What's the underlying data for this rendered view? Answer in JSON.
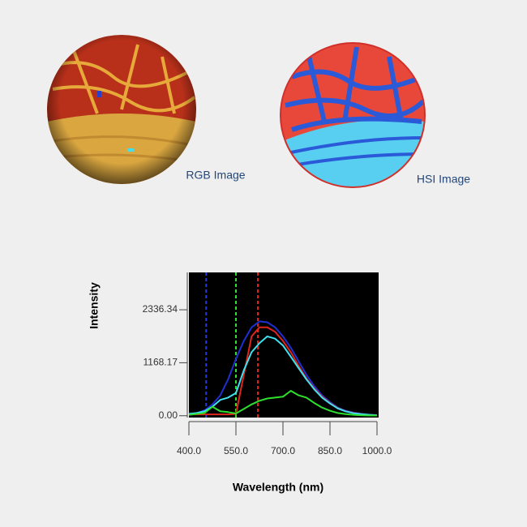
{
  "images": [
    {
      "label": "RGB Image"
    },
    {
      "label": "HSI Image"
    }
  ],
  "chart_data": {
    "type": "line",
    "y_label": "Intensity",
    "x_label": "Wavelength (nm)",
    "x": [
      400,
      425,
      450,
      475,
      500,
      525,
      550,
      575,
      600,
      625,
      650,
      675,
      700,
      725,
      750,
      775,
      800,
      825,
      850,
      875,
      900,
      925,
      950,
      975,
      1000
    ],
    "series": [
      {
        "color": "#1f2fd0",
        "values": [
          40,
          60,
          120,
          250,
          450,
          800,
          1250,
          1650,
          1950,
          2080,
          2060,
          1950,
          1750,
          1500,
          1200,
          900,
          650,
          450,
          300,
          180,
          110,
          70,
          40,
          25,
          15
        ]
      },
      {
        "color": "#e0261c",
        "values": [
          30,
          30,
          30,
          30,
          30,
          30,
          40,
          900,
          1750,
          1950,
          1950,
          1850,
          1650,
          1400,
          1100,
          820,
          600,
          420,
          280,
          170,
          100,
          60,
          35,
          20,
          12
        ]
      },
      {
        "color": "#3fe0f0",
        "values": [
          40,
          60,
          100,
          200,
          350,
          400,
          500,
          1000,
          1400,
          1600,
          1750,
          1700,
          1550,
          1300,
          1050,
          800,
          580,
          400,
          270,
          160,
          95,
          55,
          35,
          20,
          10
        ]
      },
      {
        "color": "#2ee02e",
        "values": [
          20,
          40,
          60,
          200,
          100,
          80,
          50,
          150,
          250,
          330,
          380,
          400,
          420,
          550,
          450,
          400,
          280,
          180,
          110,
          60,
          35,
          20,
          10,
          5,
          5
        ]
      }
    ],
    "markers": [
      {
        "value": 455,
        "color": "#2a3ad8"
      },
      {
        "value": 550,
        "color": "#2ee02e"
      },
      {
        "value": 620,
        "color": "#e0261c"
      }
    ],
    "xlim": [
      400,
      1000
    ],
    "ylim": [
      -40,
      3160
    ],
    "xticks": [
      {
        "value": 400,
        "label": "400.0"
      },
      {
        "value": 550,
        "label": "550.0"
      },
      {
        "value": 700,
        "label": "700.0"
      },
      {
        "value": 850,
        "label": "850.0"
      },
      {
        "value": 1000,
        "label": "1000.0"
      }
    ],
    "yticks": [
      {
        "value": 0,
        "label": "0.00"
      },
      {
        "value": 1168.17,
        "label": "1168.17"
      },
      {
        "value": 2336.34,
        "label": "2336.34"
      }
    ],
    "background": "#000000"
  }
}
